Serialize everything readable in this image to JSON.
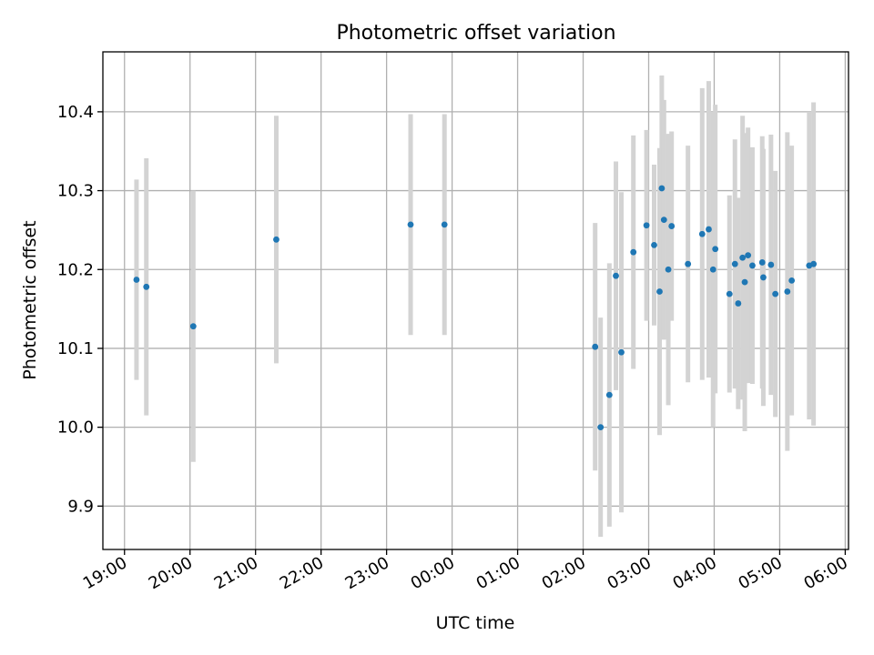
{
  "chart_data": {
    "type": "scatter",
    "title": "Photometric offset variation",
    "xlabel": "UTC time",
    "ylabel": "Photometric offset",
    "x_unit": "hours from 19:00 UTC (day 1 19:00 to day 2 06:00)",
    "xlim": [
      -0.33,
      11.05
    ],
    "ylim": [
      9.845,
      10.476
    ],
    "x_ticks": [
      {
        "value": 0,
        "label": "19:00"
      },
      {
        "value": 1,
        "label": "20:00"
      },
      {
        "value": 2,
        "label": "21:00"
      },
      {
        "value": 3,
        "label": "22:00"
      },
      {
        "value": 4,
        "label": "23:00"
      },
      {
        "value": 5,
        "label": "00:00"
      },
      {
        "value": 6,
        "label": "01:00"
      },
      {
        "value": 7,
        "label": "02:00"
      },
      {
        "value": 8,
        "label": "03:00"
      },
      {
        "value": 9,
        "label": "04:00"
      },
      {
        "value": 10,
        "label": "05:00"
      },
      {
        "value": 11,
        "label": "06:00"
      }
    ],
    "y_ticks": [
      {
        "value": 9.9,
        "label": "9.9"
      },
      {
        "value": 10.0,
        "label": "10.0"
      },
      {
        "value": 10.1,
        "label": "10.1"
      },
      {
        "value": 10.2,
        "label": "10.2"
      },
      {
        "value": 10.3,
        "label": "10.3"
      },
      {
        "value": 10.4,
        "label": "10.4"
      }
    ],
    "grid": true,
    "marker_color": "#1f77b4",
    "errorbar_color": "#d3d3d3",
    "points": [
      {
        "time": "19:11",
        "y": 10.187,
        "err": 0.127
      },
      {
        "time": "19:20",
        "y": 10.178,
        "err": 0.163
      },
      {
        "time": "20:03",
        "y": 10.128,
        "err": 0.172
      },
      {
        "time": "21:19",
        "y": 10.238,
        "err": 0.157
      },
      {
        "time": "23:22",
        "y": 10.257,
        "err": 0.14
      },
      {
        "time": "23:53",
        "y": 10.257,
        "err": 0.14
      },
      {
        "time": "02:11",
        "y": 10.102,
        "err": 0.157
      },
      {
        "time": "02:16",
        "y": 10.0,
        "err": 0.139
      },
      {
        "time": "02:24",
        "y": 10.041,
        "err": 0.167
      },
      {
        "time": "02:30",
        "y": 10.192,
        "err": 0.145
      },
      {
        "time": "02:35",
        "y": 10.095,
        "err": 0.203
      },
      {
        "time": "02:46",
        "y": 10.222,
        "err": 0.148
      },
      {
        "time": "02:58",
        "y": 10.256,
        "err": 0.121
      },
      {
        "time": "03:05",
        "y": 10.231,
        "err": 0.102
      },
      {
        "time": "03:10",
        "y": 10.172,
        "err": 0.182
      },
      {
        "time": "03:12",
        "y": 10.303,
        "err": 0.143
      },
      {
        "time": "03:14",
        "y": 10.263,
        "err": 0.152
      },
      {
        "time": "03:18",
        "y": 10.2,
        "err": 0.172
      },
      {
        "time": "03:21",
        "y": 10.255,
        "err": 0.12
      },
      {
        "time": "03:36",
        "y": 10.207,
        "err": 0.15
      },
      {
        "time": "03:49",
        "y": 10.245,
        "err": 0.185
      },
      {
        "time": "03:55",
        "y": 10.251,
        "err": 0.188
      },
      {
        "time": "03:59",
        "y": 10.2,
        "err": 0.2
      },
      {
        "time": "04:01",
        "y": 10.226,
        "err": 0.183
      },
      {
        "time": "04:14",
        "y": 10.169,
        "err": 0.125
      },
      {
        "time": "04:19",
        "y": 10.207,
        "err": 0.158
      },
      {
        "time": "04:22",
        "y": 10.157,
        "err": 0.134
      },
      {
        "time": "04:26",
        "y": 10.215,
        "err": 0.18
      },
      {
        "time": "04:28",
        "y": 10.184,
        "err": 0.189
      },
      {
        "time": "04:31",
        "y": 10.218,
        "err": 0.162
      },
      {
        "time": "04:35",
        "y": 10.205,
        "err": 0.15
      },
      {
        "time": "04:44",
        "y": 10.209,
        "err": 0.16
      },
      {
        "time": "04:45",
        "y": 10.19,
        "err": 0.163
      },
      {
        "time": "04:52",
        "y": 10.206,
        "err": 0.165
      },
      {
        "time": "04:56",
        "y": 10.169,
        "err": 0.156
      },
      {
        "time": "05:07",
        "y": 10.172,
        "err": 0.202
      },
      {
        "time": "05:11",
        "y": 10.186,
        "err": 0.171
      },
      {
        "time": "05:27",
        "y": 10.205,
        "err": 0.195
      },
      {
        "time": "05:31",
        "y": 10.207,
        "err": 0.205
      }
    ]
  }
}
